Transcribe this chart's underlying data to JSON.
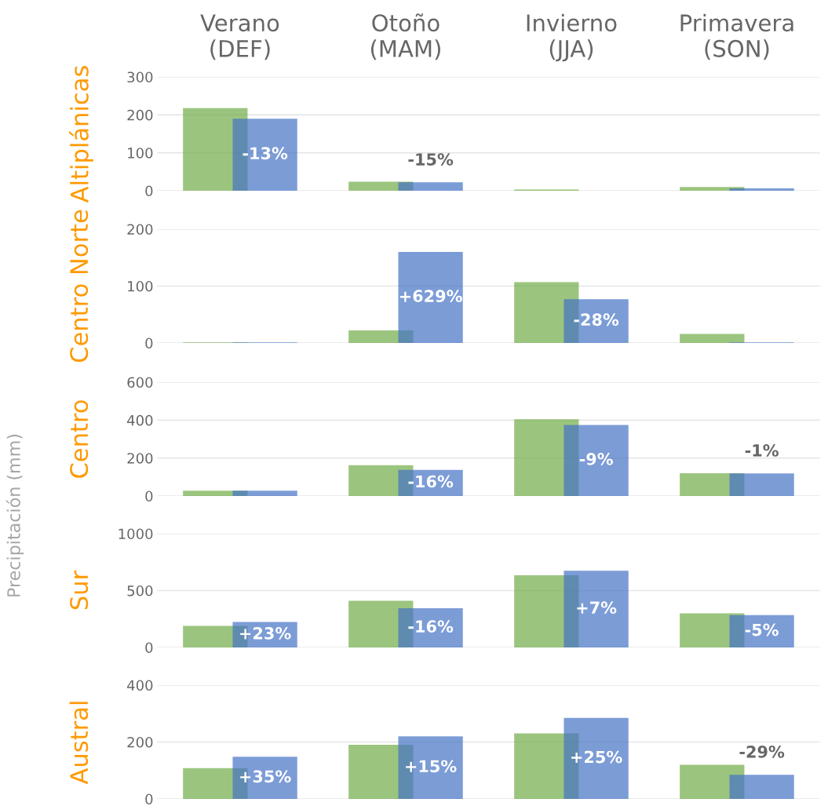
{
  "chart_data": [
    {
      "type": "bar",
      "title": "Altiplánicas",
      "categories": [
        "Verano\n(DEF)",
        "Otoño\n(MAM)",
        "Invierno\n(JJA)",
        "Primavera\n(SON)"
      ],
      "ylim": [
        0,
        300
      ],
      "yticks": [
        0,
        100,
        200,
        300
      ],
      "grid": "y",
      "series": [
        {
          "color": "#70ad47",
          "values": [
            218,
            24,
            3,
            10
          ]
        },
        {
          "color": "#4472c4",
          "values": [
            190,
            22,
            0,
            6
          ]
        }
      ],
      "annotations": [
        {
          "text": "-13%",
          "x": "Verano\n(DEF)",
          "y": 190
        },
        {
          "text": "-15%",
          "x": "Otoño\n(MAM)",
          "y": 22
        }
      ]
    },
    {
      "type": "bar",
      "title": "Centro Norte",
      "categories": [
        "Verano\n(DEF)",
        "Otoño\n(MAM)",
        "Invierno\n(JJA)",
        "Primavera\n(SON)"
      ],
      "ylim": [
        0,
        200
      ],
      "yticks": [
        0,
        100,
        200
      ],
      "grid": "y",
      "tick_labels": "y",
      "series": [
        {
          "color": "#70ad47",
          "values": [
            1,
            22,
            107,
            16
          ]
        },
        {
          "color": "#4472c4",
          "values": [
            1,
            160,
            77,
            1
          ]
        }
      ],
      "annotations": [
        {
          "text": "+629%",
          "x": "Otoño\n(MAM)",
          "y": 160
        },
        {
          "text": "-28%",
          "x": "Invierno\n(JJA)",
          "y": 77
        }
      ]
    },
    {
      "type": "bar",
      "title": "Centro",
      "ylabel": "Precipitación (mm)",
      "categories": [
        "Verano\n(DEF)",
        "Otoño\n(MAM)",
        "Invierno\n(JJA)",
        "Primavera\n(SON)"
      ],
      "ylim": [
        0,
        600
      ],
      "yticks": [
        0,
        200,
        400,
        600
      ],
      "grid": "y",
      "tick_labels": "y",
      "series": [
        {
          "color": "#70ad47",
          "values": [
            28,
            162,
            405,
            120
          ]
        },
        {
          "color": "#4472c4",
          "values": [
            28,
            138,
            375,
            119
          ]
        }
      ],
      "annotations": [
        {
          "text": "-16%",
          "x": "Otoño\n(MAM)",
          "y": 138
        },
        {
          "text": "-9%",
          "x": "Invierno\n(JJA)",
          "y": 375
        },
        {
          "text": "-1%",
          "x": "Primavera\n(SON)",
          "y": 119
        }
      ]
    },
    {
      "type": "bar",
      "title": "Sur",
      "categories": [
        "Verano\n(DEF)",
        "Otoño\n(MAM)",
        "Invierno\n(JJA)",
        "Primavera\n(SON)"
      ],
      "ylim": [
        0,
        1000
      ],
      "yticks": [
        0,
        500,
        1000
      ],
      "grid": "y",
      "tick_labels": "y",
      "series": [
        {
          "color": "#70ad47",
          "values": [
            190,
            410,
            635,
            300
          ]
        },
        {
          "color": "#4472c4",
          "values": [
            225,
            345,
            675,
            285
          ]
        }
      ],
      "annotations": [
        {
          "text": "+23%",
          "x": "Verano\n(DEF)",
          "y": 225
        },
        {
          "text": "-16%",
          "x": "Otoño\n(MAM)",
          "y": 345
        },
        {
          "text": "+7%",
          "x": "Invierno\n(JJA)",
          "y": 675
        },
        {
          "text": "-5%",
          "x": "Primavera\n(SON)",
          "y": 285
        }
      ]
    },
    {
      "type": "bar",
      "title": "Austral",
      "categories": [
        "Verano\n(DEF)",
        "Otoño\n(MAM)",
        "Invierno\n(JJA)",
        "Primavera\n(SON)"
      ],
      "ylim": [
        0,
        400
      ],
      "yticks": [
        0,
        200,
        400
      ],
      "grid": "y",
      "tick_labels": "y",
      "series": [
        {
          "color": "#70ad47",
          "values": [
            108,
            190,
            230,
            120
          ]
        },
        {
          "color": "#4472c4",
          "values": [
            148,
            220,
            285,
            85
          ]
        }
      ],
      "annotations": [
        {
          "text": "+35%",
          "x": "Verano\n(DEF)",
          "y": 148
        },
        {
          "text": "+15%",
          "x": "Otoño\n(MAM)",
          "y": 220
        },
        {
          "text": "+25%",
          "x": "Invierno\n(JJA)",
          "y": 285
        },
        {
          "text": "-29%",
          "x": "Primavera\n(SON)",
          "y": 85
        }
      ]
    }
  ]
}
